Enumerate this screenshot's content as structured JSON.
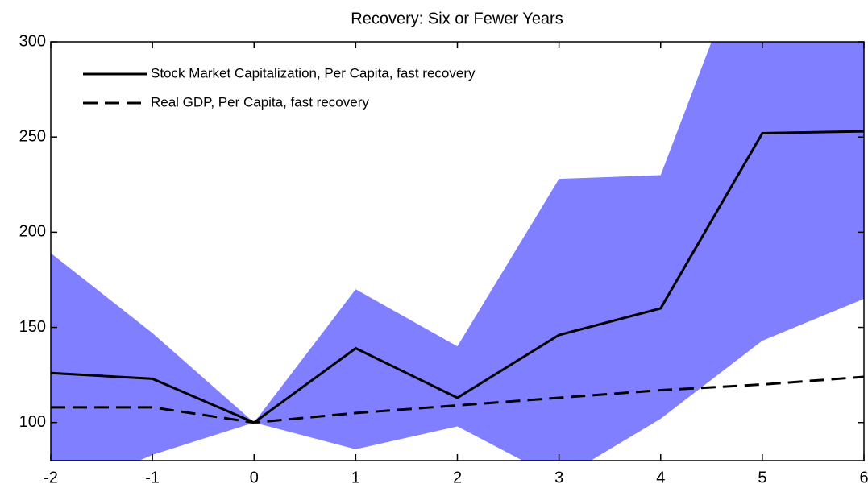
{
  "chart_data": {
    "type": "line",
    "title": "Recovery: Six or Fewer Years",
    "x": [
      -2,
      -1,
      0,
      1,
      2,
      3,
      4,
      5,
      6
    ],
    "band": {
      "color": "#7f7fff",
      "upper": [
        189,
        147,
        100,
        170,
        140,
        228,
        230,
        370,
        370
      ],
      "lower": [
        60,
        83,
        100,
        86,
        98,
        70,
        102,
        143,
        165
      ]
    },
    "series": [
      {
        "name": "Stock Market Capitalization, Per Capita, fast recovery",
        "color": "#000000",
        "dash": "solid",
        "values": [
          126,
          123,
          100,
          139,
          113,
          146,
          160,
          252,
          253
        ]
      },
      {
        "name": "Real GDP, Per Capita, fast recovery",
        "color": "#000000",
        "dash": "dashed",
        "values": [
          108,
          108,
          100,
          105,
          109,
          113,
          117,
          120,
          124
        ]
      }
    ],
    "xlim": [
      -2,
      6
    ],
    "ylim": [
      80,
      300
    ],
    "xticks": [
      -2,
      -1,
      0,
      1,
      2,
      3,
      4,
      5,
      6
    ],
    "yticks": [
      100,
      150,
      200,
      250,
      300
    ],
    "legend": "upper-left"
  }
}
